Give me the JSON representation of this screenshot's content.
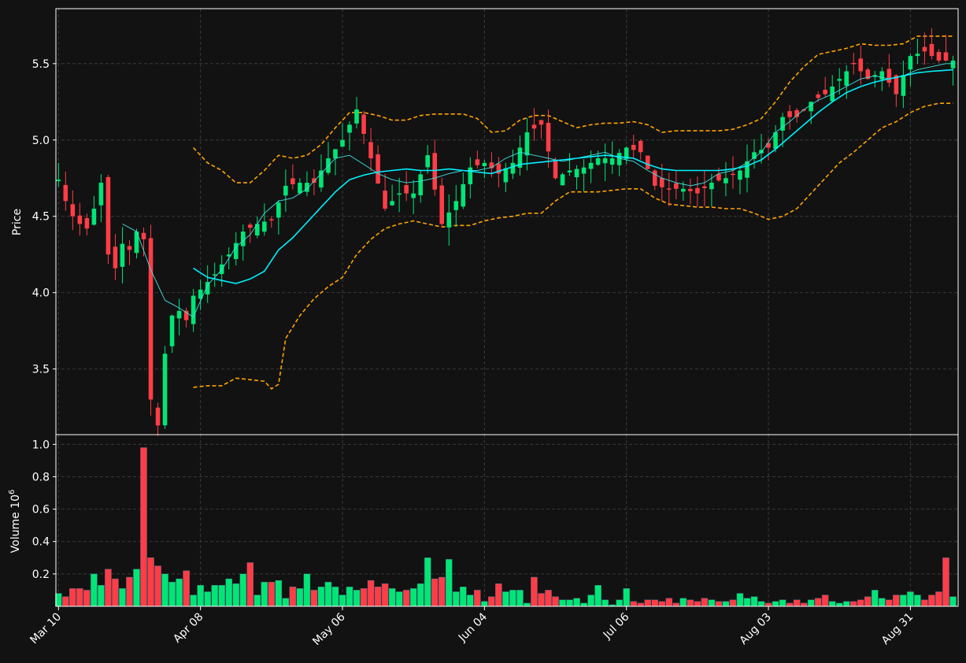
{
  "chart_data": {
    "type": "candlestick",
    "price_panel": {
      "ylabel": "Price",
      "yticks": [
        3.5,
        4.0,
        4.5,
        5.0,
        5.5
      ],
      "ytick_labels": [
        "3.5",
        "4.0",
        "4.5",
        "5.0",
        "5.5"
      ],
      "ylim": [
        3.07,
        5.86
      ],
      "grid": true
    },
    "volume_panel": {
      "ylabel": "Volume  10",
      "ylabel_exponent": "6",
      "yticks": [
        0.2,
        0.4,
        0.6,
        0.8,
        1.0
      ],
      "ytick_labels": [
        "0.2",
        "0.4",
        "0.6",
        "0.8",
        "1.0"
      ],
      "ylim": [
        0,
        1.06
      ],
      "grid": true
    },
    "x_axis": {
      "tick_labels": [
        "Mar 10",
        "Apr 08",
        "May 06",
        "Jun 04",
        "Jul 06",
        "Aug 03",
        "Aug 31"
      ],
      "tick_index": [
        0,
        20,
        40,
        60,
        80,
        100,
        120
      ],
      "n_bars": 127
    },
    "colors": {
      "up": "#00e676",
      "down": "#ff3d47",
      "ma_fast": "#40e0e0",
      "ma_slow": "#00f0ff",
      "bands": "#ffa500",
      "background": "#121212",
      "grid": "#3a3a3a",
      "axis": "#ffffff"
    },
    "ohlc_anchors": [
      [
        0,
        4.74
      ],
      [
        1,
        4.6
      ],
      [
        2,
        4.5
      ],
      [
        3,
        4.45
      ],
      [
        4,
        4.42
      ],
      [
        5,
        4.55
      ],
      [
        6,
        4.72
      ],
      [
        7,
        4.25
      ],
      [
        8,
        4.16
      ],
      [
        9,
        4.32
      ],
      [
        10,
        4.28
      ],
      [
        11,
        4.4
      ],
      [
        12,
        4.35
      ],
      [
        13,
        3.3
      ],
      [
        14,
        3.13
      ],
      [
        15,
        3.6
      ],
      [
        16,
        3.85
      ],
      [
        17,
        3.88
      ],
      [
        18,
        3.82
      ],
      [
        19,
        3.98
      ],
      [
        20,
        4.02
      ],
      [
        22,
        4.12
      ],
      [
        24,
        4.25
      ],
      [
        26,
        4.4
      ],
      [
        28,
        4.45
      ],
      [
        30,
        4.48
      ],
      [
        32,
        4.7
      ],
      [
        34,
        4.72
      ],
      [
        36,
        4.72
      ],
      [
        38,
        4.88
      ],
      [
        40,
        5.0
      ],
      [
        42,
        5.2
      ],
      [
        44,
        4.88
      ],
      [
        46,
        4.55
      ],
      [
        48,
        4.65
      ],
      [
        50,
        4.65
      ],
      [
        52,
        4.9
      ],
      [
        54,
        4.45
      ],
      [
        56,
        4.6
      ],
      [
        58,
        4.82
      ],
      [
        60,
        4.85
      ],
      [
        62,
        4.78
      ],
      [
        64,
        4.85
      ],
      [
        66,
        5.05
      ],
      [
        68,
        5.1
      ],
      [
        70,
        4.75
      ],
      [
        72,
        4.8
      ],
      [
        74,
        4.82
      ],
      [
        76,
        4.88
      ],
      [
        78,
        4.88
      ],
      [
        80,
        4.95
      ],
      [
        82,
        4.92
      ],
      [
        84,
        4.7
      ],
      [
        86,
        4.68
      ],
      [
        88,
        4.68
      ],
      [
        90,
        4.65
      ],
      [
        92,
        4.72
      ],
      [
        94,
        4.75
      ],
      [
        96,
        4.8
      ],
      [
        98,
        4.92
      ],
      [
        100,
        4.95
      ],
      [
        102,
        5.15
      ],
      [
        104,
        5.15
      ],
      [
        106,
        5.25
      ],
      [
        108,
        5.3
      ],
      [
        110,
        5.4
      ],
      [
        112,
        5.5
      ],
      [
        114,
        5.4
      ],
      [
        116,
        5.45
      ],
      [
        118,
        5.3
      ],
      [
        120,
        5.55
      ],
      [
        122,
        5.58
      ],
      [
        124,
        5.52
      ],
      [
        126,
        5.52
      ]
    ],
    "ma_fast_anchors": [
      [
        9,
        4.45
      ],
      [
        11,
        4.4
      ],
      [
        13,
        4.15
      ],
      [
        15,
        3.95
      ],
      [
        17,
        3.9
      ],
      [
        19,
        3.84
      ],
      [
        21,
        4.05
      ],
      [
        23,
        4.15
      ],
      [
        25,
        4.3
      ],
      [
        27,
        4.38
      ],
      [
        29,
        4.52
      ],
      [
        31,
        4.6
      ],
      [
        33,
        4.62
      ],
      [
        35,
        4.68
      ],
      [
        37,
        4.78
      ],
      [
        39,
        4.88
      ],
      [
        41,
        4.9
      ],
      [
        43,
        4.84
      ],
      [
        45,
        4.78
      ],
      [
        47,
        4.74
      ],
      [
        49,
        4.72
      ],
      [
        51,
        4.73
      ],
      [
        53,
        4.75
      ],
      [
        55,
        4.78
      ],
      [
        57,
        4.8
      ],
      [
        59,
        4.8
      ],
      [
        61,
        4.82
      ],
      [
        63,
        4.88
      ],
      [
        65,
        4.92
      ],
      [
        67,
        4.9
      ],
      [
        69,
        4.88
      ],
      [
        71,
        4.86
      ],
      [
        73,
        4.88
      ],
      [
        75,
        4.9
      ],
      [
        77,
        4.92
      ],
      [
        79,
        4.88
      ],
      [
        81,
        4.86
      ],
      [
        83,
        4.8
      ],
      [
        85,
        4.75
      ],
      [
        87,
        4.72
      ],
      [
        89,
        4.7
      ],
      [
        91,
        4.72
      ],
      [
        93,
        4.78
      ],
      [
        95,
        4.8
      ],
      [
        97,
        4.85
      ],
      [
        99,
        4.92
      ],
      [
        101,
        5.05
      ],
      [
        103,
        5.12
      ],
      [
        105,
        5.2
      ],
      [
        107,
        5.26
      ],
      [
        109,
        5.3
      ],
      [
        111,
        5.35
      ],
      [
        113,
        5.4
      ],
      [
        115,
        5.42
      ],
      [
        117,
        5.4
      ],
      [
        119,
        5.42
      ],
      [
        121,
        5.46
      ],
      [
        123,
        5.48
      ],
      [
        125,
        5.5
      ],
      [
        126,
        5.5
      ]
    ],
    "ma_slow_anchors": [
      [
        19,
        4.16
      ],
      [
        21,
        4.1
      ],
      [
        23,
        4.08
      ],
      [
        25,
        4.06
      ],
      [
        27,
        4.09
      ],
      [
        29,
        4.14
      ],
      [
        31,
        4.28
      ],
      [
        33,
        4.36
      ],
      [
        35,
        4.46
      ],
      [
        37,
        4.56
      ],
      [
        39,
        4.66
      ],
      [
        41,
        4.74
      ],
      [
        43,
        4.77
      ],
      [
        45,
        4.79
      ],
      [
        47,
        4.8
      ],
      [
        49,
        4.81
      ],
      [
        51,
        4.8
      ],
      [
        53,
        4.8
      ],
      [
        55,
        4.81
      ],
      [
        57,
        4.8
      ],
      [
        59,
        4.79
      ],
      [
        61,
        4.78
      ],
      [
        63,
        4.81
      ],
      [
        65,
        4.84
      ],
      [
        67,
        4.85
      ],
      [
        69,
        4.86
      ],
      [
        71,
        4.87
      ],
      [
        73,
        4.88
      ],
      [
        75,
        4.89
      ],
      [
        77,
        4.9
      ],
      [
        79,
        4.89
      ],
      [
        81,
        4.88
      ],
      [
        83,
        4.84
      ],
      [
        85,
        4.81
      ],
      [
        87,
        4.8
      ],
      [
        89,
        4.8
      ],
      [
        91,
        4.8
      ],
      [
        93,
        4.8
      ],
      [
        95,
        4.81
      ],
      [
        97,
        4.83
      ],
      [
        99,
        4.87
      ],
      [
        101,
        4.94
      ],
      [
        103,
        5.02
      ],
      [
        105,
        5.1
      ],
      [
        107,
        5.18
      ],
      [
        109,
        5.25
      ],
      [
        111,
        5.31
      ],
      [
        113,
        5.35
      ],
      [
        115,
        5.38
      ],
      [
        117,
        5.4
      ],
      [
        119,
        5.42
      ],
      [
        121,
        5.44
      ],
      [
        123,
        5.45
      ],
      [
        126,
        5.46
      ]
    ],
    "band_upper_anchors": [
      [
        19,
        4.95
      ],
      [
        21,
        4.85
      ],
      [
        23,
        4.8
      ],
      [
        25,
        4.72
      ],
      [
        27,
        4.72
      ],
      [
        29,
        4.8
      ],
      [
        31,
        4.9
      ],
      [
        33,
        4.88
      ],
      [
        35,
        4.9
      ],
      [
        37,
        4.97
      ],
      [
        39,
        5.08
      ],
      [
        41,
        5.18
      ],
      [
        43,
        5.18
      ],
      [
        45,
        5.16
      ],
      [
        47,
        5.13
      ],
      [
        49,
        5.13
      ],
      [
        51,
        5.16
      ],
      [
        53,
        5.17
      ],
      [
        55,
        5.17
      ],
      [
        57,
        5.17
      ],
      [
        59,
        5.14
      ],
      [
        61,
        5.05
      ],
      [
        63,
        5.06
      ],
      [
        65,
        5.13
      ],
      [
        67,
        5.16
      ],
      [
        69,
        5.16
      ],
      [
        71,
        5.12
      ],
      [
        73,
        5.08
      ],
      [
        75,
        5.1
      ],
      [
        77,
        5.11
      ],
      [
        79,
        5.11
      ],
      [
        81,
        5.12
      ],
      [
        83,
        5.1
      ],
      [
        85,
        5.05
      ],
      [
        87,
        5.06
      ],
      [
        89,
        5.06
      ],
      [
        91,
        5.06
      ],
      [
        93,
        5.06
      ],
      [
        95,
        5.07
      ],
      [
        97,
        5.1
      ],
      [
        99,
        5.14
      ],
      [
        101,
        5.25
      ],
      [
        103,
        5.38
      ],
      [
        105,
        5.48
      ],
      [
        107,
        5.56
      ],
      [
        109,
        5.58
      ],
      [
        111,
        5.6
      ],
      [
        113,
        5.63
      ],
      [
        115,
        5.62
      ],
      [
        117,
        5.62
      ],
      [
        119,
        5.63
      ],
      [
        121,
        5.68
      ],
      [
        123,
        5.68
      ],
      [
        126,
        5.68
      ]
    ],
    "band_lower_anchors": [
      [
        19,
        3.38
      ],
      [
        21,
        3.39
      ],
      [
        23,
        3.39
      ],
      [
        25,
        3.44
      ],
      [
        27,
        3.43
      ],
      [
        29,
        3.42
      ],
      [
        30,
        3.37
      ],
      [
        31,
        3.4
      ],
      [
        32,
        3.7
      ],
      [
        34,
        3.85
      ],
      [
        36,
        3.96
      ],
      [
        38,
        4.04
      ],
      [
        40,
        4.1
      ],
      [
        42,
        4.25
      ],
      [
        44,
        4.35
      ],
      [
        46,
        4.42
      ],
      [
        48,
        4.45
      ],
      [
        50,
        4.47
      ],
      [
        52,
        4.45
      ],
      [
        54,
        4.43
      ],
      [
        56,
        4.44
      ],
      [
        58,
        4.44
      ],
      [
        60,
        4.47
      ],
      [
        62,
        4.49
      ],
      [
        64,
        4.5
      ],
      [
        66,
        4.52
      ],
      [
        68,
        4.52
      ],
      [
        70,
        4.6
      ],
      [
        72,
        4.66
      ],
      [
        74,
        4.66
      ],
      [
        76,
        4.66
      ],
      [
        78,
        4.67
      ],
      [
        80,
        4.68
      ],
      [
        82,
        4.68
      ],
      [
        84,
        4.62
      ],
      [
        86,
        4.58
      ],
      [
        88,
        4.57
      ],
      [
        90,
        4.56
      ],
      [
        92,
        4.56
      ],
      [
        94,
        4.55
      ],
      [
        96,
        4.55
      ],
      [
        98,
        4.52
      ],
      [
        100,
        4.48
      ],
      [
        102,
        4.5
      ],
      [
        104,
        4.55
      ],
      [
        106,
        4.65
      ],
      [
        108,
        4.75
      ],
      [
        110,
        4.85
      ],
      [
        112,
        4.92
      ],
      [
        114,
        5.0
      ],
      [
        116,
        5.08
      ],
      [
        118,
        5.12
      ],
      [
        120,
        5.18
      ],
      [
        122,
        5.22
      ],
      [
        124,
        5.24
      ],
      [
        126,
        5.24
      ]
    ],
    "volume_anchors": [
      [
        0,
        0.08
      ],
      [
        1,
        0.06
      ],
      [
        2,
        0.11
      ],
      [
        3,
        0.11
      ],
      [
        4,
        0.1
      ],
      [
        5,
        0.2
      ],
      [
        6,
        0.13
      ],
      [
        7,
        0.23
      ],
      [
        8,
        0.17
      ],
      [
        9,
        0.11
      ],
      [
        10,
        0.18
      ],
      [
        11,
        0.23
      ],
      [
        12,
        0.98
      ],
      [
        13,
        0.3
      ],
      [
        14,
        0.25
      ],
      [
        15,
        0.2
      ],
      [
        16,
        0.15
      ],
      [
        17,
        0.17
      ],
      [
        18,
        0.22
      ],
      [
        19,
        0.07
      ],
      [
        20,
        0.13
      ],
      [
        21,
        0.09
      ],
      [
        22,
        0.13
      ],
      [
        23,
        0.13
      ],
      [
        24,
        0.17
      ],
      [
        25,
        0.14
      ],
      [
        26,
        0.2
      ],
      [
        27,
        0.27
      ],
      [
        28,
        0.07
      ],
      [
        29,
        0.15
      ],
      [
        30,
        0.15
      ],
      [
        31,
        0.16
      ],
      [
        32,
        0.05
      ],
      [
        33,
        0.12
      ],
      [
        34,
        0.11
      ],
      [
        35,
        0.2
      ],
      [
        36,
        0.1
      ],
      [
        37,
        0.12
      ],
      [
        38,
        0.15
      ],
      [
        39,
        0.12
      ],
      [
        40,
        0.07
      ],
      [
        41,
        0.12
      ],
      [
        42,
        0.1
      ],
      [
        43,
        0.11
      ],
      [
        44,
        0.16
      ],
      [
        45,
        0.12
      ],
      [
        46,
        0.14
      ],
      [
        47,
        0.11
      ],
      [
        48,
        0.09
      ],
      [
        49,
        0.1
      ],
      [
        50,
        0.11
      ],
      [
        51,
        0.14
      ],
      [
        52,
        0.3
      ],
      [
        53,
        0.17
      ],
      [
        54,
        0.18
      ],
      [
        55,
        0.29
      ],
      [
        56,
        0.09
      ],
      [
        57,
        0.12
      ],
      [
        58,
        0.07
      ],
      [
        59,
        0.1
      ],
      [
        60,
        0.03
      ],
      [
        61,
        0.06
      ],
      [
        62,
        0.14
      ],
      [
        63,
        0.09
      ],
      [
        64,
        0.1
      ],
      [
        65,
        0.1
      ],
      [
        66,
        0.02
      ],
      [
        67,
        0.18
      ],
      [
        68,
        0.08
      ],
      [
        69,
        0.1
      ],
      [
        70,
        0.06
      ],
      [
        71,
        0.04
      ],
      [
        72,
        0.04
      ],
      [
        73,
        0.05
      ],
      [
        74,
        0.02
      ],
      [
        75,
        0.07
      ],
      [
        76,
        0.13
      ],
      [
        77,
        0.04
      ],
      [
        78,
        0.01
      ],
      [
        79,
        0.04
      ],
      [
        80,
        0.11
      ],
      [
        81,
        0.03
      ],
      [
        82,
        0.02
      ],
      [
        83,
        0.04
      ],
      [
        84,
        0.04
      ],
      [
        85,
        0.03
      ],
      [
        86,
        0.05
      ],
      [
        87,
        0.02
      ],
      [
        88,
        0.05
      ],
      [
        89,
        0.04
      ],
      [
        90,
        0.03
      ],
      [
        91,
        0.05
      ],
      [
        92,
        0.04
      ],
      [
        93,
        0.03
      ],
      [
        94,
        0.03
      ],
      [
        95,
        0.04
      ],
      [
        96,
        0.08
      ],
      [
        97,
        0.05
      ],
      [
        98,
        0.06
      ],
      [
        99,
        0.03
      ],
      [
        100,
        0.02
      ],
      [
        101,
        0.03
      ],
      [
        102,
        0.04
      ],
      [
        103,
        0.02
      ],
      [
        104,
        0.04
      ],
      [
        105,
        0.02
      ],
      [
        106,
        0.04
      ],
      [
        107,
        0.05
      ],
      [
        108,
        0.07
      ],
      [
        109,
        0.03
      ],
      [
        110,
        0.02
      ],
      [
        111,
        0.03
      ],
      [
        112,
        0.03
      ],
      [
        113,
        0.04
      ],
      [
        114,
        0.06
      ],
      [
        115,
        0.1
      ],
      [
        116,
        0.05
      ],
      [
        117,
        0.04
      ],
      [
        118,
        0.07
      ],
      [
        119,
        0.07
      ],
      [
        120,
        0.09
      ],
      [
        121,
        0.07
      ],
      [
        122,
        0.04
      ],
      [
        123,
        0.07
      ],
      [
        124,
        0.09
      ],
      [
        125,
        0.3
      ],
      [
        126,
        0.06
      ]
    ]
  }
}
